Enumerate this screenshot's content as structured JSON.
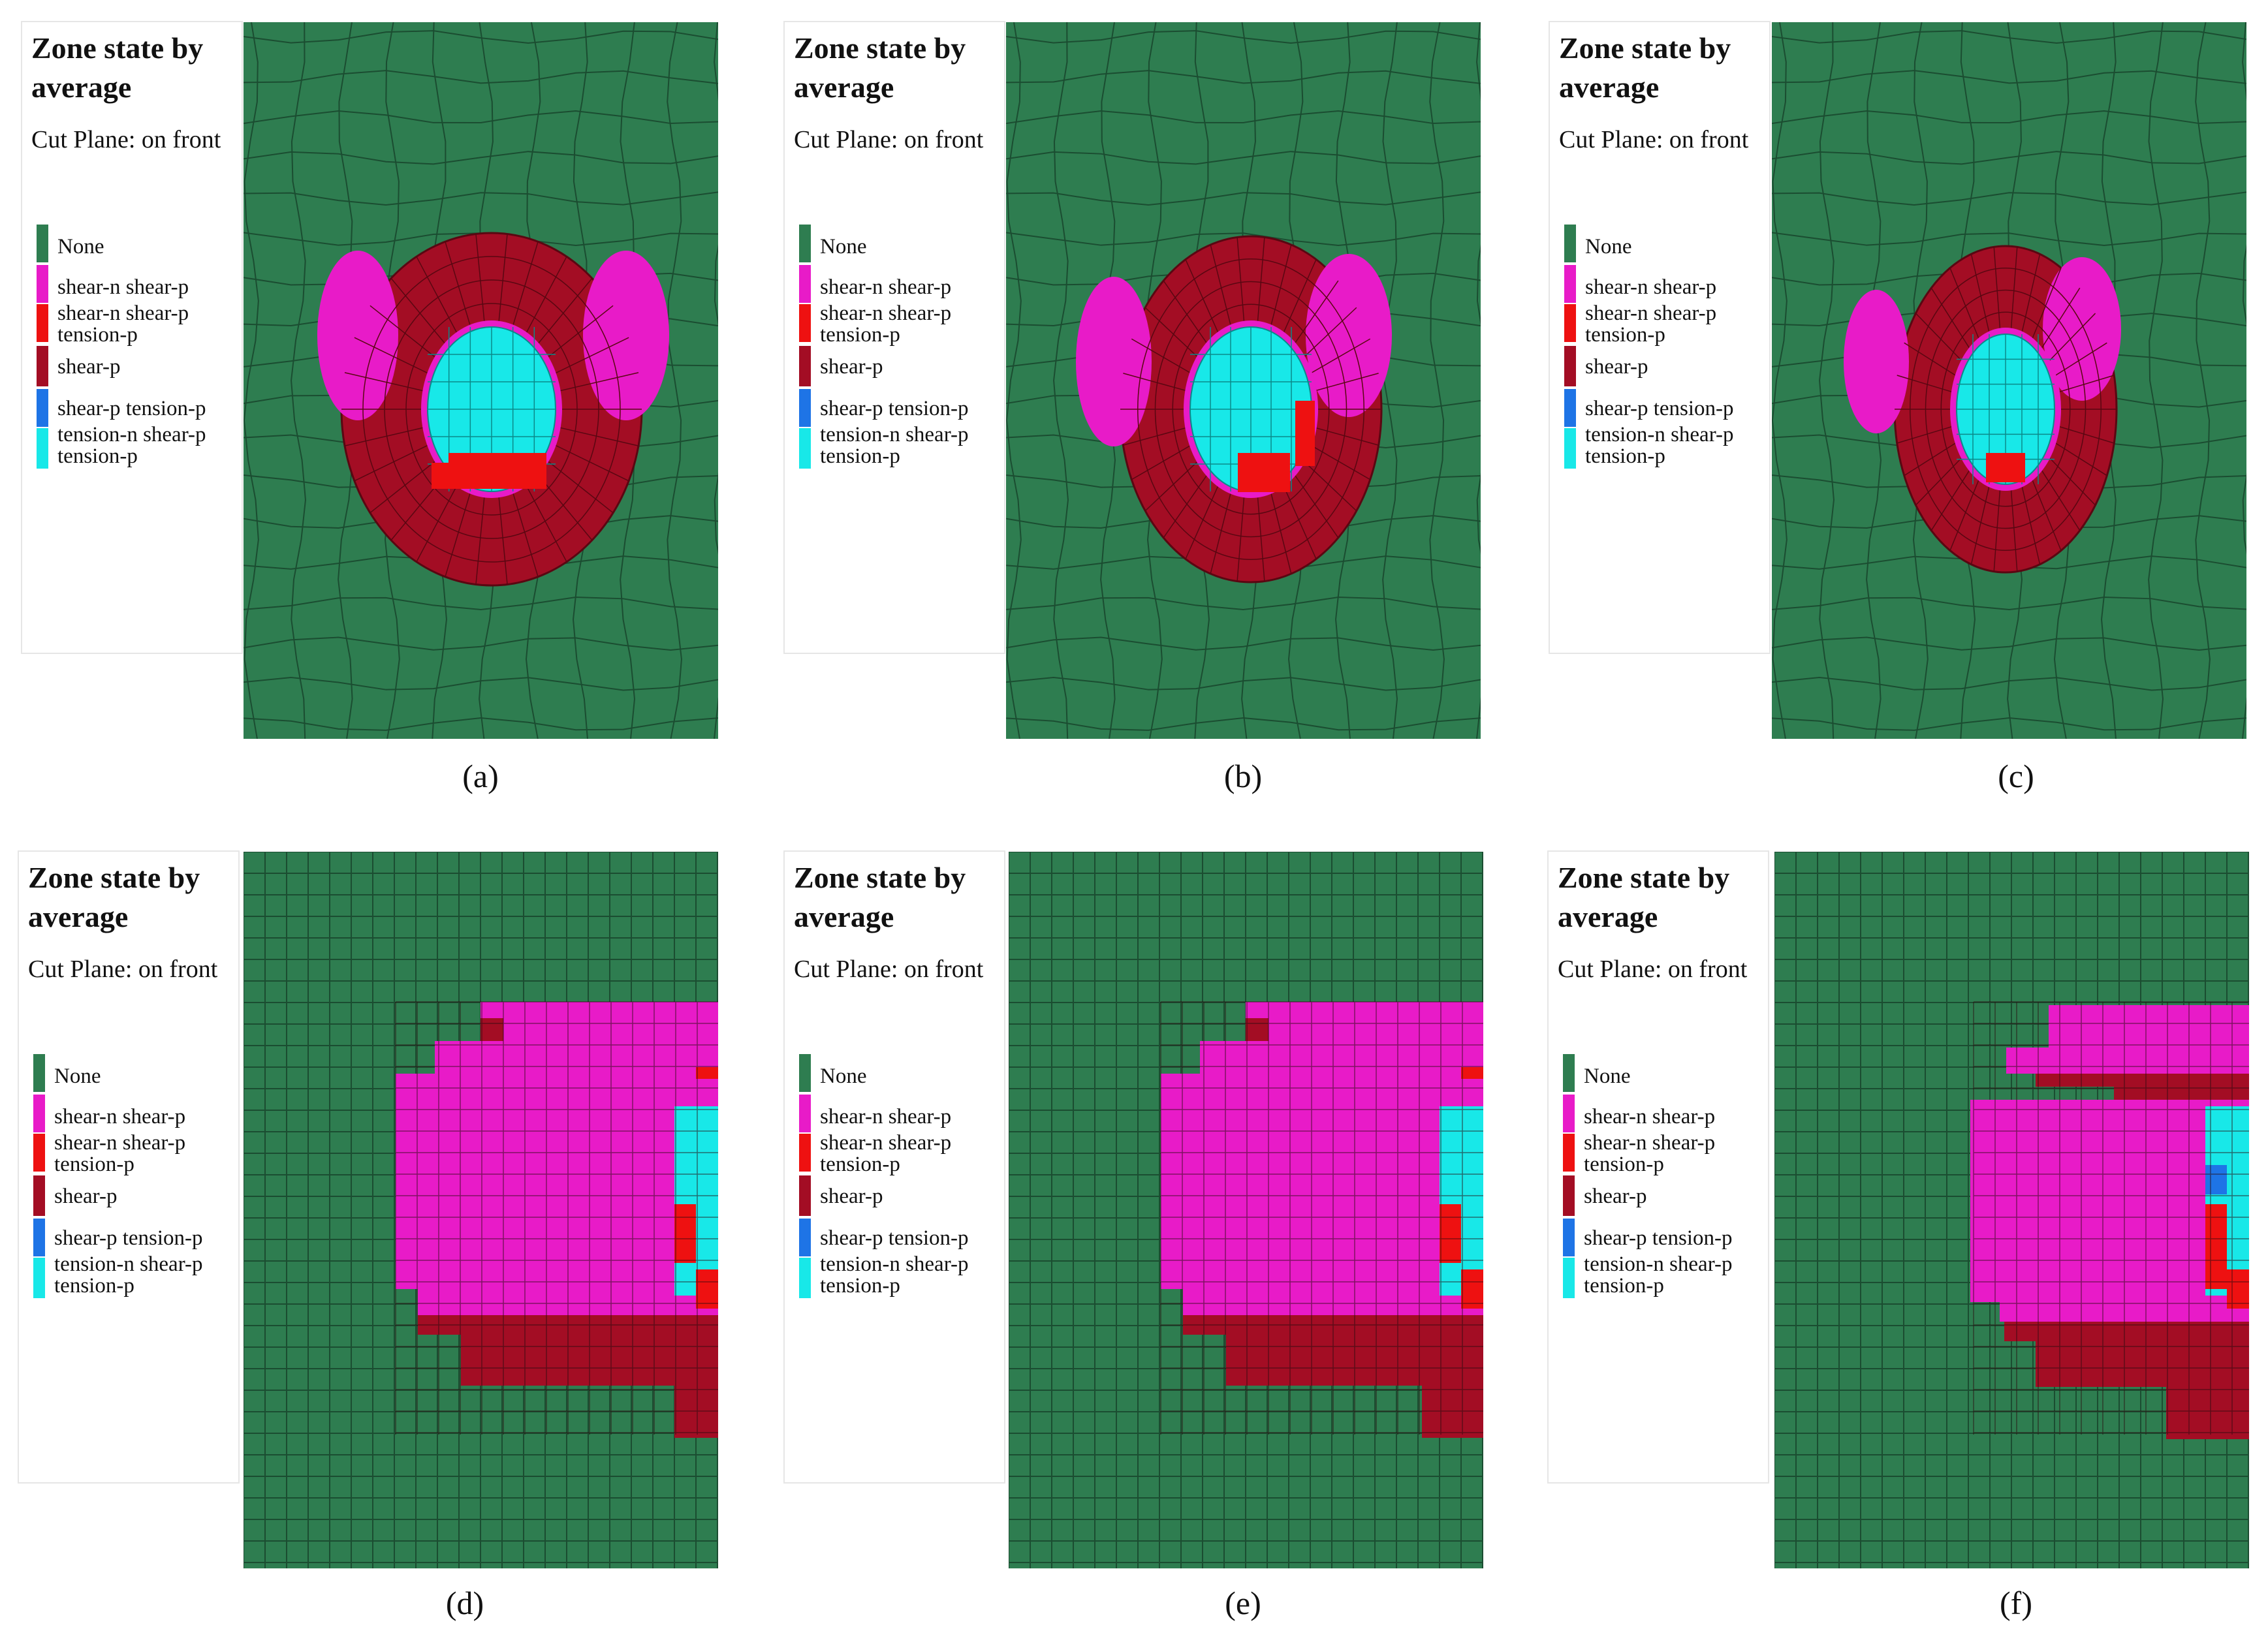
{
  "legend": {
    "title": "Zone state by\naverage",
    "cut_plane": "Cut Plane: on front",
    "items": [
      {
        "label": "None",
        "color": "#2e7d50"
      },
      {
        "label": "shear-n shear-p",
        "color": "#e81bc8"
      },
      {
        "label": "shear-n shear-p\ntension-p",
        "color": "#ee1111"
      },
      {
        "label": "shear-p",
        "color": "#a30d24"
      },
      {
        "label": "shear-p tension-p",
        "color": "#1e74e6"
      },
      {
        "label": "tension-n shear-p\ntension-p",
        "color": "#18e8e8"
      }
    ]
  },
  "panels": [
    {
      "caption": "(a)",
      "mesh": "radial"
    },
    {
      "caption": "(b)",
      "mesh": "radial"
    },
    {
      "caption": "(c)",
      "mesh": "radial"
    },
    {
      "caption": "(d)",
      "mesh": "grid"
    },
    {
      "caption": "(e)",
      "mesh": "grid"
    },
    {
      "caption": "(f)",
      "mesh": "grid"
    }
  ]
}
